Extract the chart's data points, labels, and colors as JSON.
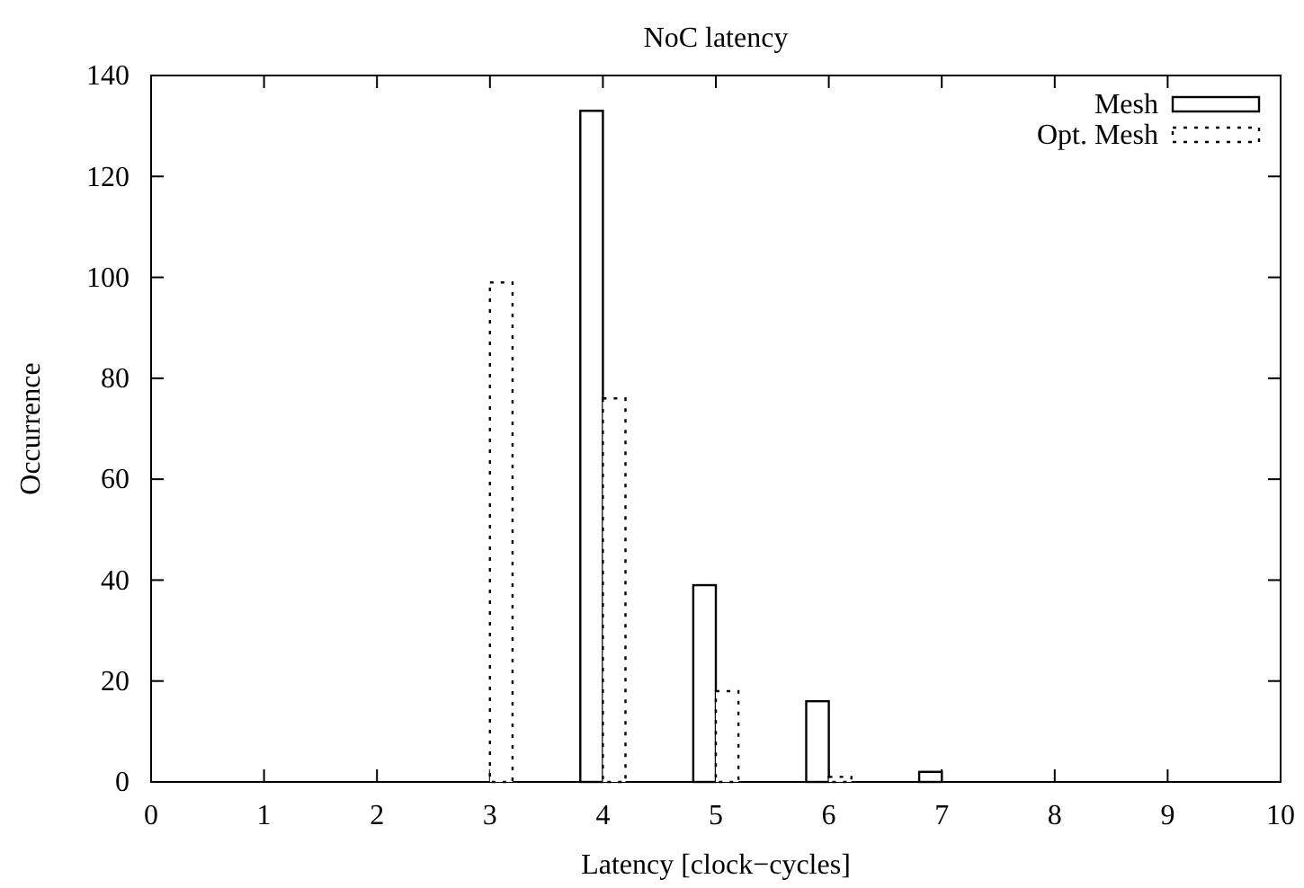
{
  "chart_data": {
    "type": "bar",
    "title": "NoC latency",
    "xlabel": "Latency [clock−cycles]",
    "ylabel": "Occurrence",
    "xlim": [
      0,
      10
    ],
    "xticks": [
      0,
      1,
      2,
      3,
      4,
      5,
      6,
      7,
      8,
      9,
      10
    ],
    "ylim": [
      0,
      140
    ],
    "yticks": [
      0,
      20,
      40,
      60,
      80,
      100,
      120,
      140
    ],
    "series": [
      {
        "name": "Mesh",
        "color": "#000000",
        "line_style": "solid",
        "x": [
          4,
          5,
          6,
          7
        ],
        "values": [
          133,
          39,
          16,
          2
        ]
      },
      {
        "name": "Opt. Mesh",
        "color": "#000000",
        "line_style": "dotted",
        "x": [
          3,
          4,
          5,
          6
        ],
        "values": [
          99,
          76,
          18,
          1
        ]
      }
    ],
    "legend": "top right",
    "grid": false
  }
}
